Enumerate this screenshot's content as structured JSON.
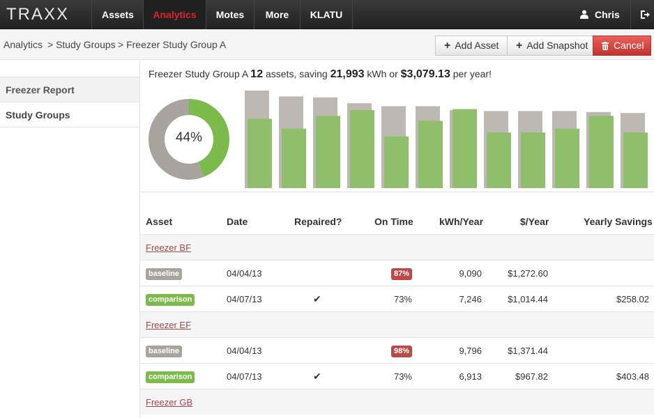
{
  "brand": "TRAXX",
  "nav": [
    {
      "label": "Assets",
      "active": false
    },
    {
      "label": "Analytics",
      "active": true
    },
    {
      "label": "Motes",
      "active": false
    },
    {
      "label": "More",
      "active": false
    },
    {
      "label": "KLATU",
      "active": false
    }
  ],
  "user": {
    "name": "Chris"
  },
  "breadcrumb": [
    {
      "label": "Analytics"
    },
    {
      "label": "> Study Groups"
    },
    {
      "label": "> Freezer Study Group A"
    }
  ],
  "actions": {
    "add_asset": "Add Asset",
    "add_snapshot": "Add Snapshot",
    "cancel": "Cancel"
  },
  "sidebar": {
    "items": [
      {
        "label": "Freezer Report"
      },
      {
        "label": "Study Groups"
      }
    ]
  },
  "summary": {
    "group_name": "Freezer Study Group A",
    "asset_count": "12",
    "assets_text": "assets, saving",
    "kwh": "21,993",
    "kwh_text": "kWh or",
    "dollars": "$3,079.13",
    "per_year_text": "per year!"
  },
  "colors": {
    "baseline": "#bdb8b1",
    "comparison": "#8fbf6a",
    "donut_green": "#7cba4b",
    "donut_gray": "#a8a39c",
    "danger": "#d9262a"
  },
  "chart_data": [
    {
      "type": "pie",
      "values": [
        44,
        56
      ],
      "center_label": "44%"
    },
    {
      "type": "bar",
      "series": [
        {
          "values": [
            100,
            94,
            93,
            87,
            84,
            84,
            80,
            79,
            79,
            79,
            78,
            77
          ]
        },
        {
          "values": [
            71,
            61,
            74,
            80,
            53,
            69,
            81,
            57,
            57,
            61,
            74,
            57
          ]
        }
      ],
      "ylim": [
        0,
        100
      ]
    }
  ],
  "table": {
    "headers": {
      "asset": "Asset",
      "date": "Date",
      "repaired": "Repaired?",
      "on_time": "On Time",
      "kwh": "kWh/Year",
      "dollars": "$/Year",
      "savings": "Yearly Savings"
    },
    "groups": [
      {
        "name": "Freezer BF",
        "rows": [
          {
            "type": "baseline",
            "date": "04/04/13",
            "repaired": "",
            "on_time": "87%",
            "on_time_flag": true,
            "kwh": "9,090",
            "dollars": "$1,272.60",
            "savings": ""
          },
          {
            "type": "comparison",
            "date": "04/07/13",
            "repaired": "✔",
            "on_time": "73%",
            "on_time_flag": false,
            "kwh": "7,246",
            "dollars": "$1,014.44",
            "savings": "$258.02"
          }
        ]
      },
      {
        "name": "Freezer EF",
        "rows": [
          {
            "type": "baseline",
            "date": "04/04/13",
            "repaired": "",
            "on_time": "98%",
            "on_time_flag": true,
            "kwh": "9,796",
            "dollars": "$1,371.44",
            "savings": ""
          },
          {
            "type": "comparison",
            "date": "04/07/13",
            "repaired": "✔",
            "on_time": "73%",
            "on_time_flag": false,
            "kwh": "6,913",
            "dollars": "$967.82",
            "savings": "$403.48"
          }
        ]
      },
      {
        "name": "Freezer GB",
        "rows": []
      }
    ]
  }
}
